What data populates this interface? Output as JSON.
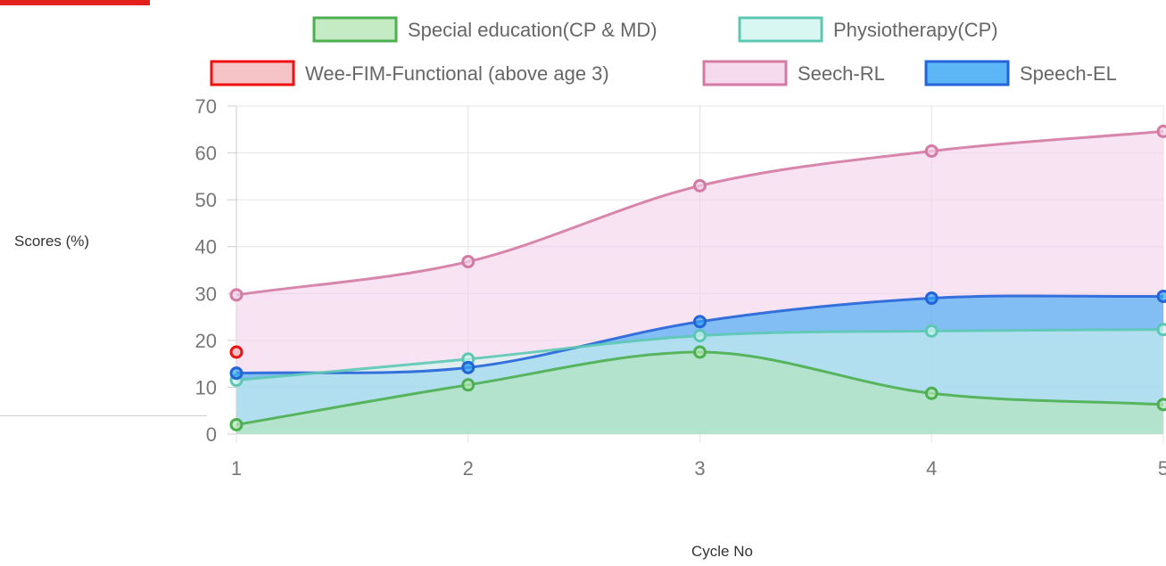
{
  "chart_data": {
    "type": "area",
    "x": [
      1,
      2,
      3,
      4,
      5
    ],
    "xlabel": "Cycle No",
    "ylabel": "Scores (%)",
    "ylim": [
      0,
      70
    ],
    "yticks": [
      0,
      10,
      20,
      30,
      40,
      50,
      60,
      70
    ],
    "grid": true,
    "legend_position": "top",
    "series": [
      {
        "name": "Special education(CP & MD)",
        "values": [
          2,
          10.5,
          17.5,
          8.7,
          6.3
        ],
        "border": "#4caf50",
        "fill": "#b5e6b5"
      },
      {
        "name": "Physiotherapy(CP)",
        "values": [
          11.5,
          16,
          21,
          22,
          22.3
        ],
        "border": "#5cc8b4",
        "fill": "#d0f5ef"
      },
      {
        "name": "Wee-FIM-Functional (above age 3)",
        "values": [
          17.5,
          null,
          null,
          null,
          null
        ],
        "border": "#ee1111",
        "fill": "#f4b4b8"
      },
      {
        "name": "Seech-RL",
        "values": [
          29.7,
          36.8,
          53,
          60.4,
          64.6
        ],
        "border": "#d47aa3",
        "fill": "#f2d1ea"
      },
      {
        "name": "Speech-EL",
        "values": [
          13,
          14.2,
          24,
          29,
          29.4
        ],
        "border": "#2564d8",
        "fill": "#33a4f4"
      }
    ],
    "legend": [
      {
        "label": "Special education(CP & MD)"
      },
      {
        "label": "Physiotherapy(CP)"
      },
      {
        "label": "Wee-FIM-Functional (above age 3)"
      },
      {
        "label": "Seech-RL"
      },
      {
        "label": "Speech-EL"
      }
    ]
  }
}
